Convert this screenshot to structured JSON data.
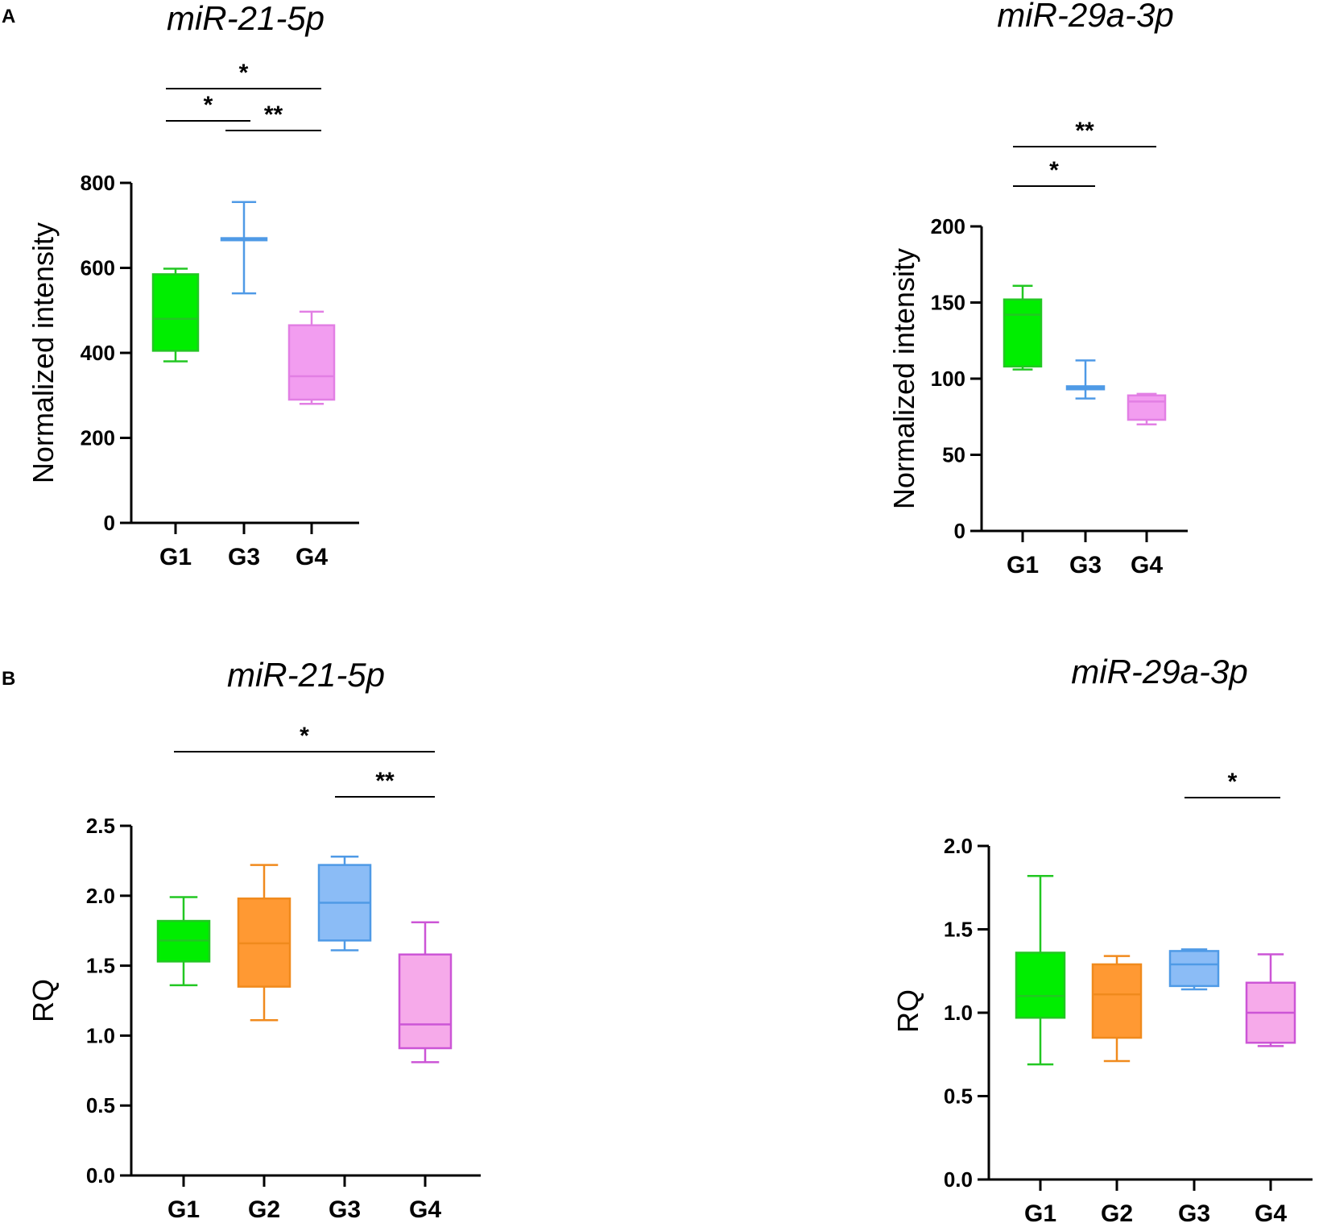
{
  "panel_labels": [
    "A",
    "B"
  ],
  "chart_data": [
    {
      "panel": "A",
      "type": "box",
      "title": "miR-21-5p",
      "xlabel": "",
      "ylabel": "Normalized intensity",
      "ylim": [
        0,
        800
      ],
      "yticks": [
        0,
        200,
        400,
        600,
        800
      ],
      "ytick_labels": [
        "0",
        "200",
        "400",
        "600",
        "800"
      ],
      "categories": [
        "G1",
        "G3",
        "G4"
      ],
      "colors": [
        "#00ee00",
        "#5aa6ef",
        "#f29df0"
      ],
      "stroke_colors": [
        "#22c722",
        "#4f9ae6",
        "#e27fe4"
      ],
      "boxes": [
        {
          "group": "G1",
          "min": 380,
          "q1": 405,
          "median": 480,
          "q3": 585,
          "max": 598
        },
        {
          "group": "G3",
          "min": 540,
          "q1": 665,
          "median": 668,
          "q3": 670,
          "max": 755
        },
        {
          "group": "G4",
          "min": 280,
          "q1": 290,
          "median": 345,
          "q3": 465,
          "max": 497
        }
      ],
      "significance": [
        {
          "from": "G1",
          "to": "G4",
          "label": "*",
          "level": 3
        },
        {
          "from": "G1",
          "to": "G3",
          "label": "*",
          "level": 2
        },
        {
          "from": "G3",
          "to": "G4",
          "label": "**",
          "level": 1
        }
      ]
    },
    {
      "panel": "A",
      "type": "box",
      "title": "miR-29a-3p",
      "xlabel": "",
      "ylabel": "Normalized intensity",
      "ylim": [
        0,
        200
      ],
      "yticks": [
        0,
        50,
        100,
        150,
        200
      ],
      "ytick_labels": [
        "0",
        "50",
        "100",
        "150",
        "200"
      ],
      "categories": [
        "G1",
        "G3",
        "G4"
      ],
      "colors": [
        "#00ee00",
        "#5aa6ef",
        "#f29df0"
      ],
      "stroke_colors": [
        "#22c722",
        "#4f9ae6",
        "#e27fe4"
      ],
      "boxes": [
        {
          "group": "G1",
          "min": 106,
          "q1": 108,
          "median": 142,
          "q3": 152,
          "max": 161
        },
        {
          "group": "G3",
          "min": 87,
          "q1": 93,
          "median": 94,
          "q3": 95,
          "max": 112
        },
        {
          "group": "G4",
          "min": 70,
          "q1": 73,
          "median": 85,
          "q3": 89,
          "max": 90
        }
      ],
      "significance": [
        {
          "from": "G1",
          "to": "G4",
          "label": "**",
          "level": 2
        },
        {
          "from": "G1",
          "to": "G3",
          "label": "*",
          "level": 1
        }
      ]
    },
    {
      "panel": "B",
      "type": "box",
      "title": "miR-21-5p",
      "xlabel": "",
      "ylabel": "RQ",
      "ylim": [
        0,
        2.5
      ],
      "yticks": [
        0,
        0.5,
        1.0,
        1.5,
        2.0,
        2.5
      ],
      "ytick_labels": [
        "0.0",
        "0.5",
        "1.0",
        "1.5",
        "2.0",
        "2.5"
      ],
      "categories": [
        "G1",
        "G2",
        "G3",
        "G4"
      ],
      "colors": [
        "#00ee00",
        "#ff9933",
        "#8bbcf6",
        "#f6aaea"
      ],
      "stroke_colors": [
        "#22c722",
        "#f08a1d",
        "#4f9ae6",
        "#cc55d6"
      ],
      "boxes": [
        {
          "group": "G1",
          "min": 1.36,
          "q1": 1.53,
          "median": 1.68,
          "q3": 1.82,
          "max": 1.99
        },
        {
          "group": "G2",
          "min": 1.11,
          "q1": 1.35,
          "median": 1.66,
          "q3": 1.98,
          "max": 2.22
        },
        {
          "group": "G3",
          "min": 1.61,
          "q1": 1.68,
          "median": 1.95,
          "q3": 2.22,
          "max": 2.28
        },
        {
          "group": "G4",
          "min": 0.81,
          "q1": 0.91,
          "median": 1.08,
          "q3": 1.58,
          "max": 1.81
        }
      ],
      "significance": [
        {
          "from": "G1",
          "to": "G4",
          "label": "*",
          "level": 2
        },
        {
          "from": "G3",
          "to": "G4",
          "label": "**",
          "level": 1
        }
      ]
    },
    {
      "panel": "B",
      "type": "box",
      "title": "miR-29a-3p",
      "xlabel": "",
      "ylabel": "RQ",
      "ylim": [
        0,
        2.0
      ],
      "yticks": [
        0,
        0.5,
        1.0,
        1.5,
        2.0
      ],
      "ytick_labels": [
        "0.0",
        "0.5",
        "1.0",
        "1.5",
        "2.0"
      ],
      "categories": [
        "G1",
        "G2",
        "G3",
        "G4"
      ],
      "colors": [
        "#00ee00",
        "#ff9933",
        "#8bbcf6",
        "#f6aaea"
      ],
      "stroke_colors": [
        "#22c722",
        "#f08a1d",
        "#4f9ae6",
        "#cc55d6"
      ],
      "boxes": [
        {
          "group": "G1",
          "min": 0.69,
          "q1": 0.97,
          "median": 1.1,
          "q3": 1.36,
          "max": 1.82
        },
        {
          "group": "G2",
          "min": 0.71,
          "q1": 0.85,
          "median": 1.11,
          "q3": 1.29,
          "max": 1.34
        },
        {
          "group": "G3",
          "min": 1.14,
          "q1": 1.16,
          "median": 1.29,
          "q3": 1.37,
          "max": 1.38
        },
        {
          "group": "G4",
          "min": 0.8,
          "q1": 0.82,
          "median": 1.0,
          "q3": 1.18,
          "max": 1.35
        }
      ],
      "significance": [
        {
          "from": "G3",
          "to": "G4",
          "label": "*",
          "level": 1
        }
      ]
    }
  ]
}
